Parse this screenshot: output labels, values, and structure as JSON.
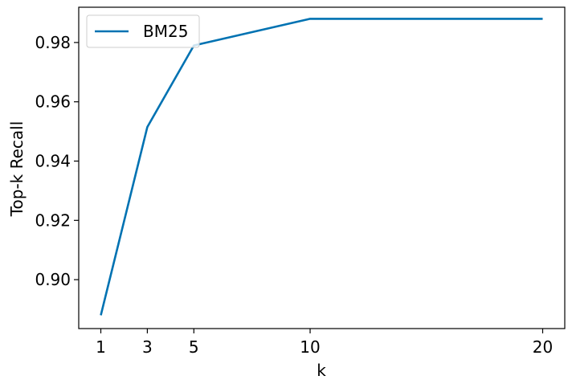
{
  "chart_data": {
    "type": "line",
    "title": "",
    "xlabel": "k",
    "ylabel": "Top-k Recall",
    "x_ticks": [
      1,
      3,
      5,
      10,
      20
    ],
    "y_ticks": [
      0.9,
      0.92,
      0.94,
      0.96,
      0.98
    ],
    "y_tick_labels": [
      "0.90",
      "0.92",
      "0.94",
      "0.96",
      "0.98"
    ],
    "xlim": [
      0.05,
      20.95
    ],
    "ylim": [
      0.8835,
      0.9919
    ],
    "grid": false,
    "legend_position": "upper left",
    "series": [
      {
        "name": "BM25",
        "color": "#0072B2",
        "x": [
          1,
          3,
          5,
          10,
          20
        ],
        "y": [
          0.888,
          0.9515,
          0.979,
          0.988,
          0.988
        ]
      }
    ]
  }
}
